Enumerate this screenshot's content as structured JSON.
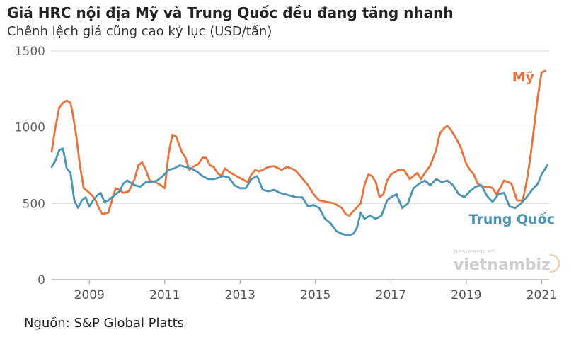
{
  "header": {
    "title": "Giá HRC nội địa Mỹ và Trung Quốc đều đang tăng nhanh",
    "subtitle": "Chênh lệch giá cũng cao kỷ lục (USD/tấn)"
  },
  "footer": {
    "source": "Nguồn: S&P Global Platts"
  },
  "watermark": {
    "top": "DESIGNED BY",
    "brand_left": "vietnam",
    "brand_right": "biz"
  },
  "colors": {
    "us": "#e8733d",
    "china": "#4a95b5",
    "grid": "#d9d9d9",
    "axis": "#999999"
  },
  "chart_data": {
    "type": "line",
    "xlim": [
      2008.0,
      2021.2
    ],
    "ylim": [
      0,
      1500
    ],
    "y_ticks": [
      0,
      500,
      1000,
      1500
    ],
    "x_ticks": [
      2009,
      2011,
      2013,
      2015,
      2017,
      2019,
      2021
    ],
    "grid": true,
    "series": [
      {
        "name": "Mỹ",
        "color": "#e8733d",
        "x": [
          2008.0,
          2008.1,
          2008.2,
          2008.3,
          2008.4,
          2008.5,
          2008.55,
          2008.65,
          2008.75,
          2008.85,
          2009.0,
          2009.08,
          2009.15,
          2009.25,
          2009.35,
          2009.5,
          2009.6,
          2009.7,
          2009.8,
          2009.9,
          2010.05,
          2010.2,
          2010.3,
          2010.4,
          2010.5,
          2010.6,
          2010.75,
          2010.9,
          2011.0,
          2011.1,
          2011.2,
          2011.3,
          2011.45,
          2011.55,
          2011.65,
          2011.75,
          2011.9,
          2012.0,
          2012.1,
          2012.2,
          2012.3,
          2012.4,
          2012.5,
          2012.6,
          2012.75,
          2012.9,
          2013.05,
          2013.2,
          2013.3,
          2013.4,
          2013.5,
          2013.6,
          2013.75,
          2013.9,
          2014.1,
          2014.25,
          2014.45,
          2014.6,
          2014.8,
          2014.95,
          2015.1,
          2015.3,
          2015.5,
          2015.7,
          2015.8,
          2015.9,
          2016.0,
          2016.2,
          2016.3,
          2016.4,
          2016.5,
          2016.6,
          2016.7,
          2016.8,
          2016.9,
          2017.0,
          2017.2,
          2017.35,
          2017.5,
          2017.6,
          2017.7,
          2017.8,
          2017.9,
          2018.05,
          2018.2,
          2018.3,
          2018.4,
          2018.5,
          2018.6,
          2018.7,
          2018.85,
          2019.0,
          2019.1,
          2019.2,
          2019.3,
          2019.45,
          2019.6,
          2019.7,
          2019.8,
          2019.9,
          2020.0,
          2020.2,
          2020.35,
          2020.5,
          2020.6,
          2020.7,
          2020.8,
          2020.9,
          2021.0,
          2021.1
        ],
        "values": [
          840,
          1000,
          1130,
          1160,
          1175,
          1160,
          1100,
          950,
          750,
          600,
          570,
          550,
          530,
          470,
          430,
          440,
          520,
          600,
          590,
          570,
          580,
          660,
          750,
          770,
          720,
          650,
          640,
          620,
          600,
          820,
          950,
          940,
          840,
          800,
          720,
          740,
          760,
          800,
          800,
          750,
          740,
          700,
          680,
          730,
          700,
          680,
          660,
          640,
          690,
          720,
          710,
          720,
          740,
          745,
          720,
          740,
          720,
          680,
          620,
          560,
          520,
          510,
          500,
          470,
          430,
          420,
          450,
          500,
          620,
          690,
          680,
          640,
          540,
          560,
          650,
          690,
          720,
          720,
          660,
          680,
          700,
          660,
          700,
          750,
          850,
          960,
          990,
          1010,
          980,
          940,
          870,
          760,
          720,
          690,
          630,
          610,
          610,
          600,
          560,
          600,
          650,
          630,
          520,
          520,
          640,
          800,
          1000,
          1200,
          1360,
          1370
        ]
      },
      {
        "name": "Trung Quốc",
        "color": "#4a95b5",
        "x": [
          2008.0,
          2008.1,
          2008.2,
          2008.3,
          2008.4,
          2008.5,
          2008.6,
          2008.7,
          2008.8,
          2008.9,
          2009.0,
          2009.1,
          2009.2,
          2009.3,
          2009.4,
          2009.5,
          2009.6,
          2009.7,
          2009.8,
          2009.9,
          2010.0,
          2010.2,
          2010.35,
          2010.5,
          2010.65,
          2010.8,
          2010.95,
          2011.1,
          2011.25,
          2011.4,
          2011.55,
          2011.7,
          2011.85,
          2012.0,
          2012.15,
          2012.3,
          2012.45,
          2012.55,
          2012.7,
          2012.85,
          2013.0,
          2013.15,
          2013.3,
          2013.45,
          2013.6,
          2013.75,
          2013.9,
          2014.05,
          2014.2,
          2014.35,
          2014.5,
          2014.65,
          2014.8,
          2014.95,
          2015.1,
          2015.25,
          2015.4,
          2015.55,
          2015.7,
          2015.85,
          2016.0,
          2016.1,
          2016.2,
          2016.3,
          2016.45,
          2016.6,
          2016.75,
          2016.9,
          2017.0,
          2017.15,
          2017.3,
          2017.45,
          2017.6,
          2017.75,
          2017.9,
          2018.05,
          2018.2,
          2018.35,
          2018.5,
          2018.65,
          2018.8,
          2018.95,
          2019.1,
          2019.25,
          2019.4,
          2019.55,
          2019.7,
          2019.85,
          2020.0,
          2020.15,
          2020.3,
          2020.45,
          2020.6,
          2020.75,
          2020.9,
          2021.0,
          2021.15
        ],
        "values": [
          740,
          780,
          850,
          860,
          730,
          700,
          520,
          470,
          520,
          540,
          480,
          520,
          550,
          570,
          510,
          520,
          540,
          560,
          580,
          630,
          650,
          620,
          610,
          640,
          640,
          650,
          680,
          720,
          730,
          750,
          740,
          730,
          710,
          680,
          660,
          660,
          670,
          680,
          670,
          620,
          600,
          600,
          660,
          680,
          590,
          580,
          590,
          570,
          560,
          550,
          540,
          540,
          480,
          490,
          470,
          400,
          370,
          320,
          300,
          290,
          300,
          340,
          440,
          400,
          420,
          400,
          420,
          520,
          540,
          560,
          470,
          500,
          600,
          630,
          650,
          620,
          660,
          640,
          650,
          620,
          560,
          540,
          580,
          610,
          620,
          550,
          510,
          560,
          570,
          480,
          470,
          500,
          540,
          590,
          630,
          690,
          750
        ]
      }
    ],
    "labels": [
      {
        "series": "Mỹ",
        "text": "Mỹ"
      },
      {
        "series": "Trung Quốc",
        "text": "Trung Quốc"
      }
    ]
  }
}
